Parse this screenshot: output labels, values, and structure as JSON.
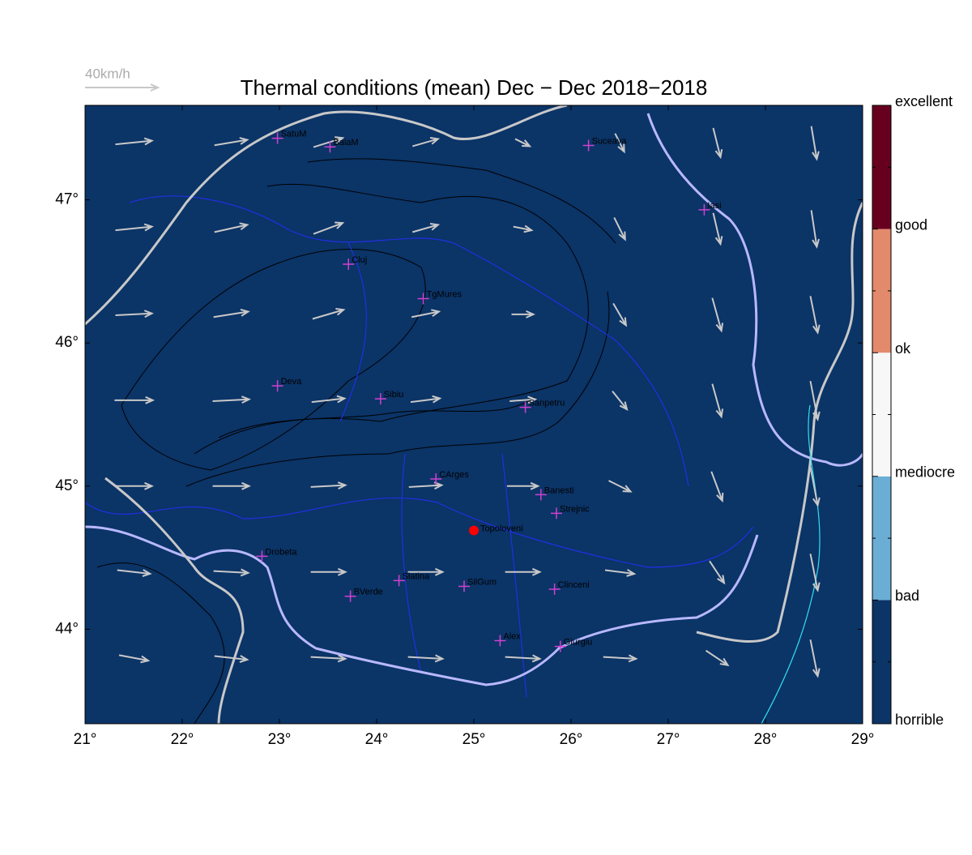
{
  "title": "Thermal conditions (mean) Dec − Dec  2018−2018",
  "wind_scale": {
    "label": "40km/h",
    "value": 40
  },
  "xlim": [
    21,
    29
  ],
  "ylim": [
    43.34,
    47.66
  ],
  "xticks": [
    {
      "value": 21,
      "label": "21°"
    },
    {
      "value": 22,
      "label": "22°"
    },
    {
      "value": 23,
      "label": "23°"
    },
    {
      "value": 24,
      "label": "24°"
    },
    {
      "value": 25,
      "label": "25°"
    },
    {
      "value": 26,
      "label": "26°"
    },
    {
      "value": 27,
      "label": "27°"
    },
    {
      "value": 28,
      "label": "28°"
    },
    {
      "value": 29,
      "label": "29°"
    }
  ],
  "yticks": [
    {
      "value": 44,
      "label": "44°"
    },
    {
      "value": 45,
      "label": "45°"
    },
    {
      "value": 46,
      "label": "46°"
    },
    {
      "value": 47,
      "label": "47°"
    }
  ],
  "colorbar": {
    "labels": [
      "horrible",
      "bad",
      "mediocre",
      "ok",
      "good",
      "excellent"
    ],
    "colors": [
      "#0b3467",
      "#6aaed6",
      "#f7f7f7",
      "#e38a6c",
      "#67001f"
    ]
  },
  "map_color": "#0b3467",
  "cities": [
    {
      "name": "SatuM",
      "lon": 22.98,
      "lat": 47.43
    },
    {
      "name": "BaiaM",
      "lon": 23.52,
      "lat": 47.37
    },
    {
      "name": "Suceava",
      "lon": 26.18,
      "lat": 47.38
    },
    {
      "name": "Iasi",
      "lon": 27.37,
      "lat": 46.93
    },
    {
      "name": "Cluj",
      "lon": 23.71,
      "lat": 46.55
    },
    {
      "name": "TgMures",
      "lon": 24.48,
      "lat": 46.31
    },
    {
      "name": "Deva",
      "lon": 22.98,
      "lat": 45.7
    },
    {
      "name": "Sibiu",
      "lon": 24.04,
      "lat": 45.61
    },
    {
      "name": "Sanpetru",
      "lon": 25.53,
      "lat": 45.55
    },
    {
      "name": "CArges",
      "lon": 24.61,
      "lat": 45.05
    },
    {
      "name": "Banesti",
      "lon": 25.69,
      "lat": 44.94
    },
    {
      "name": "Strejnic",
      "lon": 25.85,
      "lat": 44.81
    },
    {
      "name": "Drobeta",
      "lon": 22.82,
      "lat": 44.51
    },
    {
      "name": "Slatina",
      "lon": 24.23,
      "lat": 44.34
    },
    {
      "name": "SilGum",
      "lon": 24.9,
      "lat": 44.3
    },
    {
      "name": "Clinceni",
      "lon": 25.83,
      "lat": 44.28
    },
    {
      "name": "BVerde",
      "lon": 23.73,
      "lat": 44.23
    },
    {
      "name": "Alex",
      "lon": 25.27,
      "lat": 43.92
    },
    {
      "name": "Giurgiu",
      "lon": 25.89,
      "lat": 43.88
    }
  ],
  "marker": {
    "name": "Topoloveni",
    "lon": 25.0,
    "lat": 44.69
  },
  "wind": {
    "lons": [
      21.5,
      22.5,
      23.5,
      24.5,
      25.5,
      26.5,
      27.5,
      28.5
    ],
    "lats": [
      47.4,
      46.8,
      46.2,
      45.6,
      45.0,
      44.4,
      43.8
    ],
    "u": [
      [
        20,
        18,
        16,
        14,
        8,
        5,
        4,
        3
      ],
      [
        20,
        18,
        16,
        14,
        10,
        6,
        4,
        3
      ],
      [
        20,
        19,
        17,
        15,
        12,
        7,
        5,
        4
      ],
      [
        21,
        20,
        18,
        16,
        14,
        8,
        5,
        4
      ],
      [
        20,
        20,
        19,
        18,
        17,
        12,
        6,
        4
      ],
      [
        18,
        19,
        19,
        19,
        19,
        16,
        8,
        4
      ],
      [
        16,
        18,
        19,
        19,
        19,
        18,
        12,
        4
      ]
    ],
    "v": [
      [
        2,
        3,
        5,
        4,
        -4,
        -10,
        -16,
        -18
      ],
      [
        2,
        4,
        6,
        4,
        -2,
        -12,
        -17,
        -20
      ],
      [
        1,
        3,
        5,
        3,
        0,
        -12,
        -18,
        -20
      ],
      [
        0,
        1,
        2,
        2,
        1,
        -10,
        -18,
        -21
      ],
      [
        0,
        0,
        1,
        1,
        0,
        -6,
        -16,
        -21
      ],
      [
        -2,
        -1,
        0,
        0,
        0,
        -2,
        -12,
        -20
      ],
      [
        -3,
        -2,
        -1,
        -1,
        -1,
        -1,
        -8,
        -20
      ]
    ]
  }
}
